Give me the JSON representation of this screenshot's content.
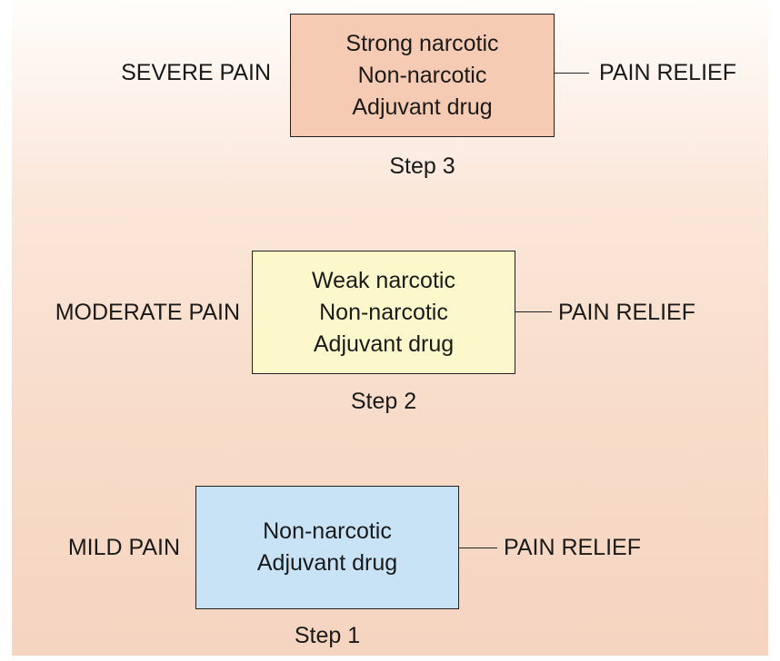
{
  "steps": [
    {
      "level": "SEVERE PAIN",
      "drugs": [
        "Strong narcotic",
        "Non-narcotic",
        "Adjuvant drug"
      ],
      "outcome": "PAIN RELIEF",
      "step_label": "Step 3",
      "box_color": "#f5cbb3"
    },
    {
      "level": "MODERATE PAIN",
      "drugs": [
        "Weak narcotic",
        "Non-narcotic",
        "Adjuvant drug"
      ],
      "outcome": "PAIN RELIEF",
      "step_label": "Step 2",
      "box_color": "#fdf8cb"
    },
    {
      "level": "MILD PAIN",
      "drugs": [
        "Non-narcotic",
        "Adjuvant drug"
      ],
      "outcome": "PAIN RELIEF",
      "step_label": "Step 1",
      "box_color": "#c8e2f6"
    }
  ]
}
